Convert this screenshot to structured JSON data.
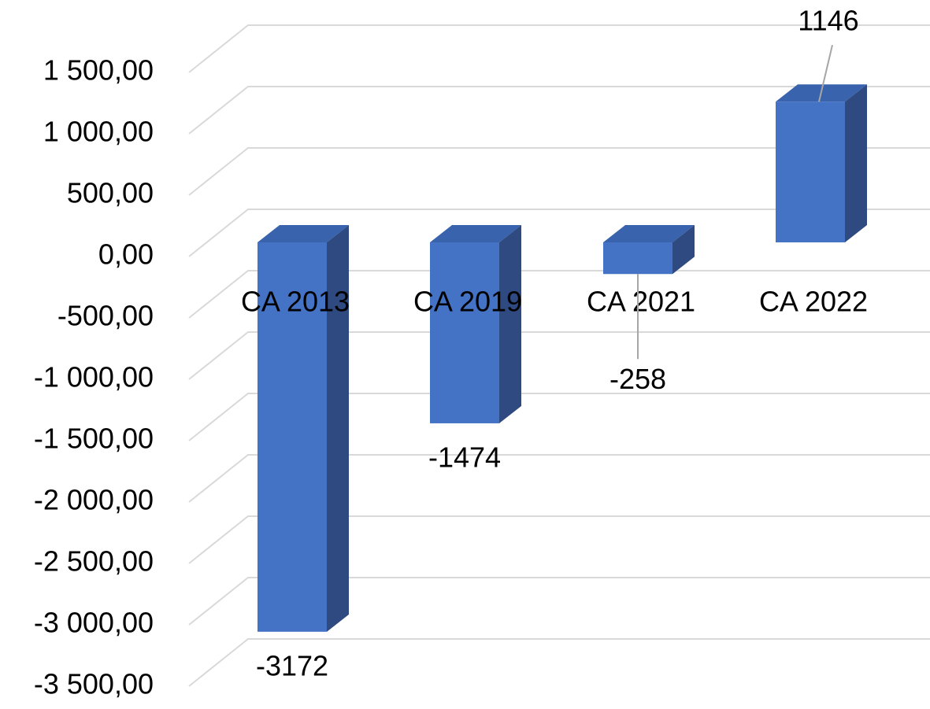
{
  "chart_data": {
    "type": "bar3d",
    "categories": [
      "CA 2013",
      "CA 2019",
      "CA 2021",
      "CA 2022"
    ],
    "values": [
      -3172,
      -1474,
      -258,
      1146
    ],
    "color": "#4472c4",
    "ylim": [
      -3500,
      1500
    ],
    "yticks": [
      {
        "value": -3500,
        "label": "-3 500,00"
      },
      {
        "value": -3000,
        "label": "-3 000,00"
      },
      {
        "value": -2500,
        "label": "-2 500,00"
      },
      {
        "value": -2000,
        "label": "-2 000,00"
      },
      {
        "value": -1500,
        "label": "-1 500,00"
      },
      {
        "value": -1000,
        "label": "-1 000,00"
      },
      {
        "value": -500,
        "label": "-500,00"
      },
      {
        "value": 0,
        "label": "0,00"
      },
      {
        "value": 500,
        "label": "500,00"
      },
      {
        "value": 1000,
        "label": "1 000,00"
      },
      {
        "value": 1500,
        "label": "1 500,00"
      }
    ],
    "grid": true
  }
}
